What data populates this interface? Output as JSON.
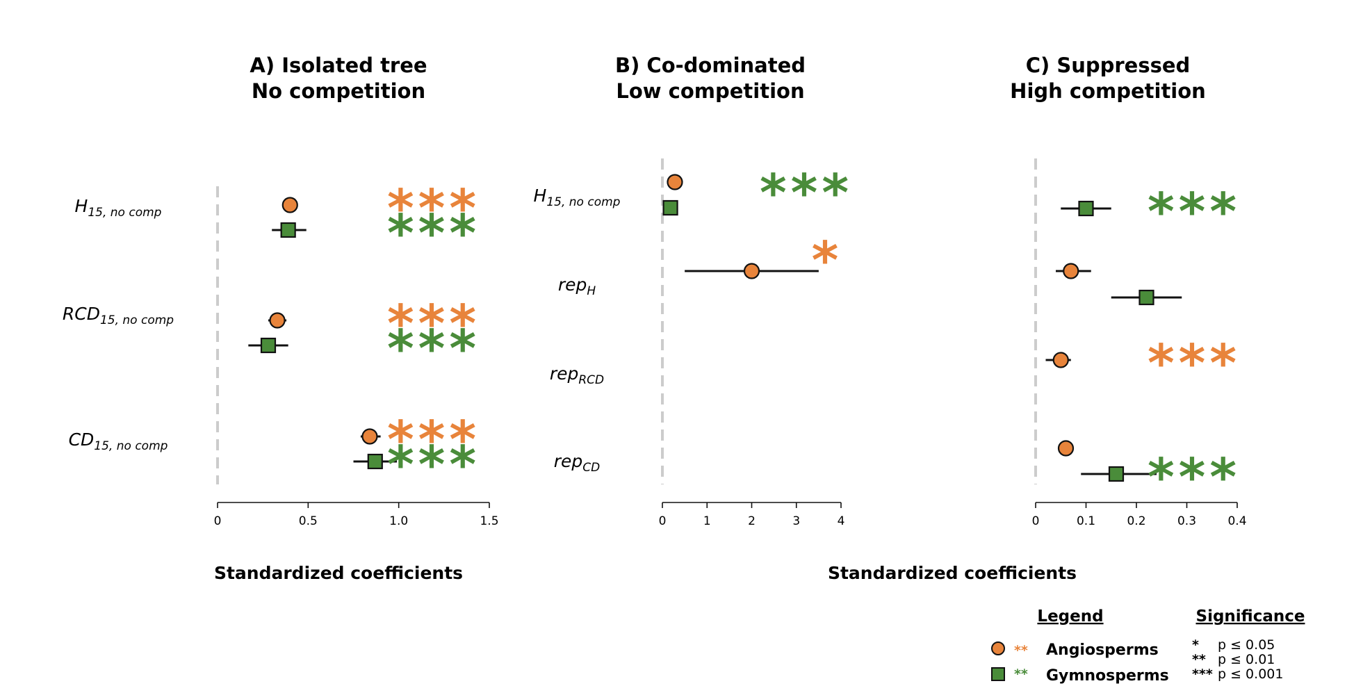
{
  "colors": {
    "angiosperms": "#E8843B",
    "gymnosperms": "#4A8C3A",
    "zero_line": "#cccccc",
    "ink": "#111111"
  },
  "shared_xlabel": "Standardized coefficients",
  "legend": {
    "title": "Legend",
    "items": [
      {
        "label": "Angiosperms",
        "marker": "circle",
        "stars": "**",
        "color": "#E8843B"
      },
      {
        "label": "Gymnosperms",
        "marker": "square",
        "stars": "**",
        "color": "#4A8C3A"
      }
    ]
  },
  "significance": {
    "title": "Significance",
    "rows": [
      {
        "stars": "*",
        "text": "p ≤ 0.05"
      },
      {
        "stars": "**",
        "text": "p ≤ 0.01"
      },
      {
        "stars": "***",
        "text": "p ≤ 0.001"
      }
    ]
  },
  "chart_data": [
    {
      "type": "scatter",
      "title": [
        "A) Isolated tree",
        "No competition"
      ],
      "xlabel": "Standardized coefficients",
      "xlim": [
        0,
        1.5
      ],
      "xticks": [
        0,
        0.5,
        1.0,
        1.5
      ],
      "xtick_labels": [
        "0",
        "0.5",
        "1.0",
        "1.5"
      ],
      "rows": [
        {
          "label": "H",
          "sub": "15, no comp",
          "points": [
            {
              "series": "Angiosperms",
              "value": 0.4,
              "lo": 0.4,
              "hi": 0.4,
              "sig": "***"
            },
            {
              "series": "Gymnosperms",
              "value": 0.39,
              "lo": 0.3,
              "hi": 0.49,
              "sig": "***"
            }
          ]
        },
        {
          "label": "RCD",
          "sub": "15, no comp",
          "points": [
            {
              "series": "Angiosperms",
              "value": 0.33,
              "lo": 0.28,
              "hi": 0.38,
              "sig": "***"
            },
            {
              "series": "Gymnosperms",
              "value": 0.28,
              "lo": 0.17,
              "hi": 0.39,
              "sig": "***"
            }
          ]
        },
        {
          "label": "CD",
          "sub": "15, no comp",
          "points": [
            {
              "series": "Angiosperms",
              "value": 0.84,
              "lo": 0.79,
              "hi": 0.9,
              "sig": "***"
            },
            {
              "series": "Gymnosperms",
              "value": 0.87,
              "lo": 0.75,
              "hi": 0.99,
              "sig": "***"
            }
          ]
        }
      ]
    },
    {
      "type": "scatter",
      "title": [
        "B) Co-dominated",
        "Low competition"
      ],
      "xlabel": "Standardized coefficients",
      "xlim": [
        0,
        4.0
      ],
      "xticks": [
        0,
        1,
        2,
        3,
        4
      ],
      "xtick_labels": [
        "0",
        "1",
        "2",
        "3",
        "4"
      ],
      "rows": [
        {
          "label": "H",
          "sub": "15, no comp",
          "points": [
            {
              "series": "Angiosperms",
              "value": 0.28,
              "lo": 0.28,
              "hi": 0.28,
              "sig": ""
            },
            {
              "series": "Gymnosperms",
              "value": 0.18,
              "lo": 0.18,
              "hi": 0.18,
              "sig": "***"
            }
          ]
        },
        {
          "label": "rep",
          "sub": "H",
          "points": [
            {
              "series": "Angiosperms",
              "value": 2.0,
              "lo": 0.5,
              "hi": 3.5,
              "sig": "*"
            }
          ]
        },
        {
          "label": "rep",
          "sub": "RCD",
          "points": []
        },
        {
          "label": "rep",
          "sub": "CD",
          "points": []
        }
      ]
    },
    {
      "type": "scatter",
      "title": [
        "C) Suppressed",
        "High competition"
      ],
      "xlabel": "Standardized coefficients",
      "xlim": [
        0,
        0.4
      ],
      "xticks": [
        0,
        0.1,
        0.2,
        0.3,
        0.4
      ],
      "xtick_labels": [
        "0",
        "0.1",
        "0.2",
        "0.3",
        "0.4"
      ],
      "rows": [
        {
          "label": "",
          "sub": "",
          "points": [
            {
              "series": "Gymnosperms",
              "value": 0.1,
              "lo": 0.05,
              "hi": 0.15,
              "sig": "***"
            }
          ]
        },
        {
          "label": "",
          "sub": "",
          "points": [
            {
              "series": "Angiosperms",
              "value": 0.07,
              "lo": 0.04,
              "hi": 0.11,
              "sig": ""
            },
            {
              "series": "Gymnosperms",
              "value": 0.22,
              "lo": 0.15,
              "hi": 0.29,
              "sig": ""
            }
          ]
        },
        {
          "label": "",
          "sub": "",
          "points": [
            {
              "series": "Angiosperms",
              "value": 0.05,
              "lo": 0.02,
              "hi": 0.07,
              "sig": "***"
            }
          ]
        },
        {
          "label": "",
          "sub": "",
          "points": [
            {
              "series": "Angiosperms",
              "value": 0.06,
              "lo": 0.05,
              "hi": 0.07,
              "sig": ""
            },
            {
              "series": "Gymnosperms",
              "value": 0.16,
              "lo": 0.09,
              "hi": 0.24,
              "sig": "***"
            }
          ]
        }
      ]
    }
  ]
}
